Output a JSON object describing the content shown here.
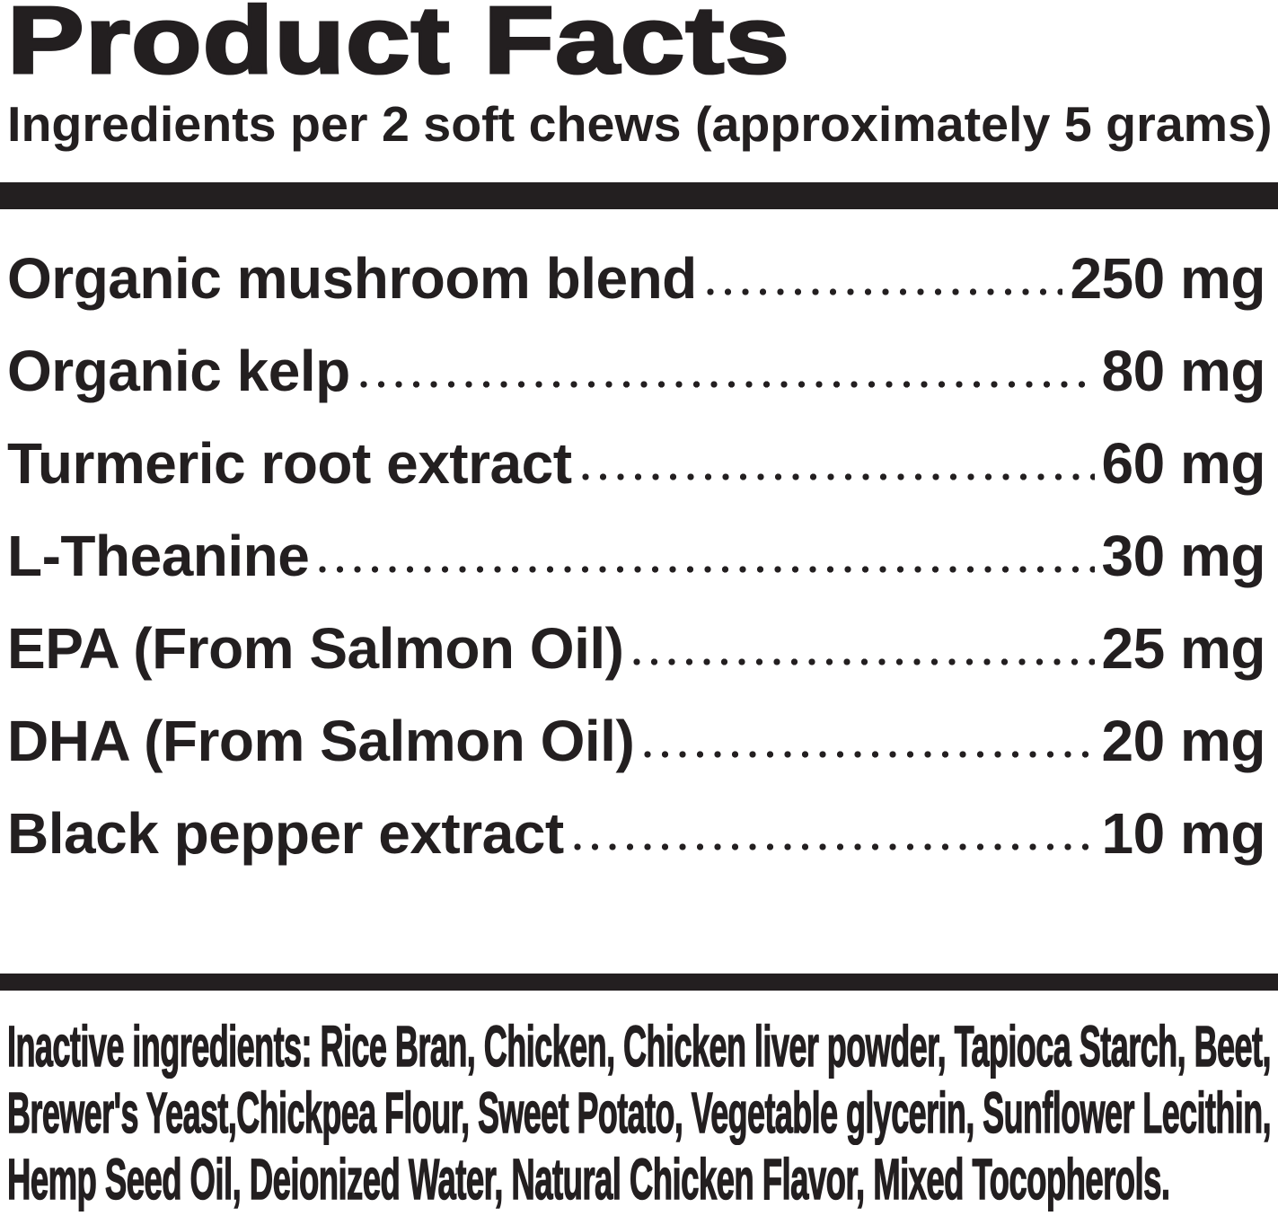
{
  "header": {
    "title": "Product Facts",
    "serving_info": "Ingredients per 2 soft chews (approximately 5 grams)"
  },
  "ingredients": [
    {
      "name": "Organic mushroom blend",
      "amount": "250 mg"
    },
    {
      "name": "Organic kelp",
      "amount": "80 mg"
    },
    {
      "name": "Turmeric root extract",
      "amount": "60 mg"
    },
    {
      "name": "L-Theanine",
      "amount": "30 mg"
    },
    {
      "name": "EPA (From Salmon Oil)",
      "amount": "25 mg"
    },
    {
      "name": "DHA (From Salmon Oil)",
      "amount": "20 mg"
    },
    {
      "name": "Black pepper extract",
      "amount": "10 mg"
    }
  ],
  "inactive_ingredients": {
    "lines": [
      "Inactive ingredients: Rice Bran, Chicken, Chicken liver powder, Tapioca Starch, Beet,",
      "Brewer's Yeast,Chickpea Flour, Sweet Potato, Vegetable glycerin, Sunflower Lecithin,",
      "Hemp Seed Oil, Deionized Water, Natural Chicken Flavor, Mixed Tocopherols."
    ]
  },
  "colors": {
    "ink": "#231f20",
    "background": "#ffffff",
    "divider_bar": "#231f20"
  }
}
